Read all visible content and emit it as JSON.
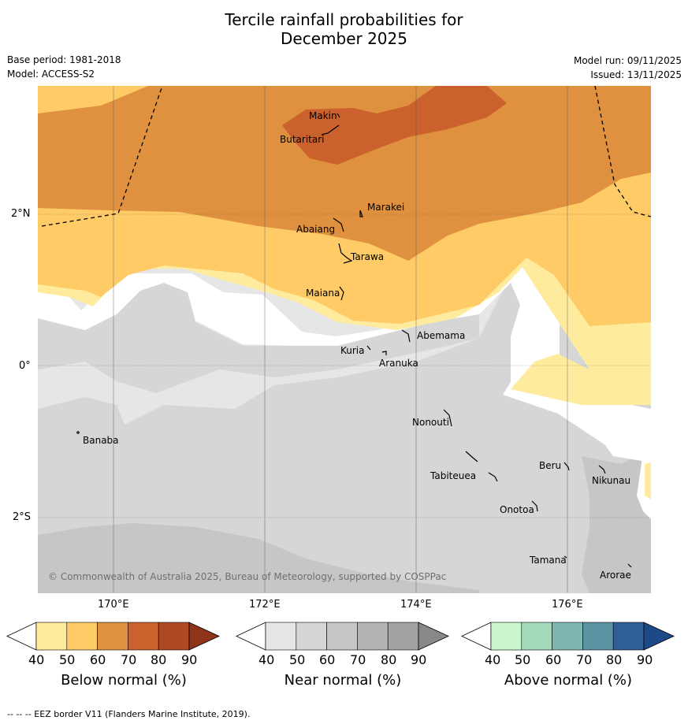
{
  "title": {
    "line1": "Tercile rainfall probabilities for",
    "line2": "December 2025"
  },
  "meta": {
    "base_period": "Base period: 1981-2018",
    "model": "Model: ACCESS-S2",
    "model_run": "Model run: 09/11/2025",
    "issued": "Issued: 13/11/2025"
  },
  "axes": {
    "lat_labels": [
      "2°N",
      "0°",
      "2°S"
    ],
    "lon_labels": [
      "170°E",
      "172°E",
      "174°E",
      "176°E"
    ]
  },
  "places": [
    {
      "name": "Makin"
    },
    {
      "name": "Butaritari"
    },
    {
      "name": "Marakei"
    },
    {
      "name": "Abaiang"
    },
    {
      "name": "Tarawa"
    },
    {
      "name": "Maiana"
    },
    {
      "name": "Abemama"
    },
    {
      "name": "Kuria"
    },
    {
      "name": "Aranuka"
    },
    {
      "name": "Nonouti"
    },
    {
      "name": "Banaba"
    },
    {
      "name": "Beru"
    },
    {
      "name": "Nikunau"
    },
    {
      "name": "Tabiteuea"
    },
    {
      "name": "Onotoa"
    },
    {
      "name": "Tamana"
    },
    {
      "name": "Arorae"
    }
  ],
  "copyright": "© Commonwealth of Australia 2025, Bureau of Meteorology, supported by COSPPac",
  "colorbars": [
    {
      "title": "Below normal (%)",
      "ticks": [
        "40",
        "50",
        "60",
        "70",
        "80",
        "90"
      ],
      "colors": [
        "#ffffff",
        "#ffeb9e",
        "#fecb66",
        "#df913f",
        "#cb612d",
        "#ad4a24",
        "#8f3419"
      ]
    },
    {
      "title": "Near normal (%)",
      "ticks": [
        "40",
        "50",
        "60",
        "70",
        "80",
        "90"
      ],
      "colors": [
        "#ffffff",
        "#e6e6e6",
        "#d6d6d6",
        "#c6c6c6",
        "#b4b4b4",
        "#a2a2a2",
        "#888888"
      ]
    },
    {
      "title": "Above normal (%)",
      "ticks": [
        "40",
        "50",
        "60",
        "70",
        "80",
        "90"
      ],
      "colors": [
        "#ffffff",
        "#caf5cd",
        "#a4d9bc",
        "#7fb7b0",
        "#5b93a2",
        "#2f5f98",
        "#1d4a86"
      ]
    }
  ],
  "footer": "--  --  -- EEZ border V11 (Flanders Marine Institute, 2019)."
}
